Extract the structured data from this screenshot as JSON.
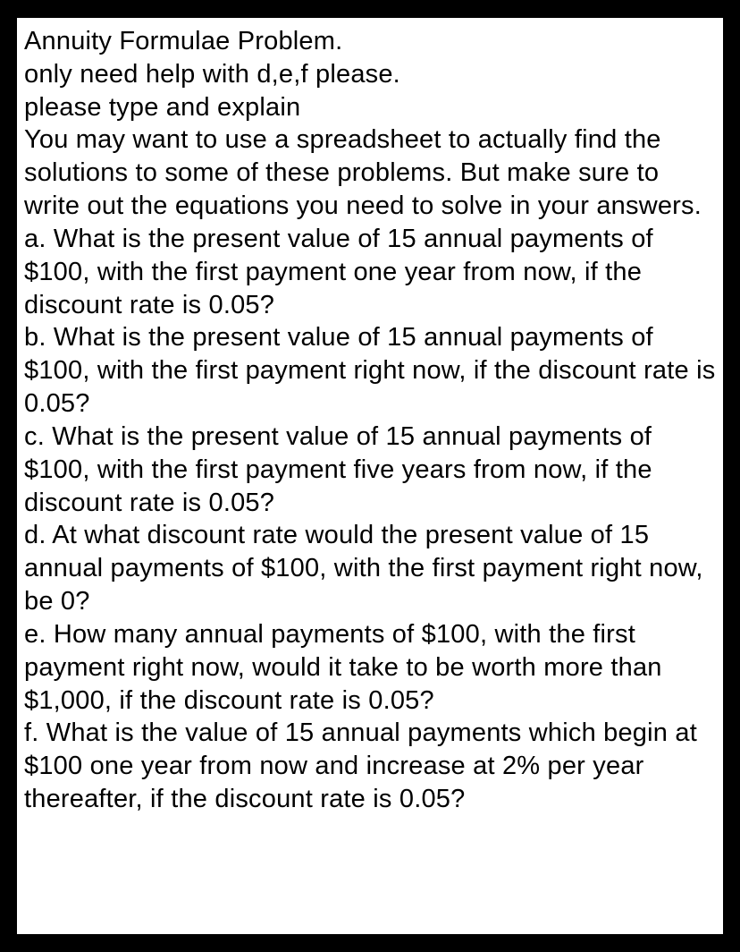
{
  "document": {
    "title": "Annuity Formulae Problem.",
    "help_line": "only need help with d,e,f please.",
    "type_line": "please type and explain",
    "intro": "You may want to use a spreadsheet to actually find the solutions to some of these problems. But make sure to write out the equations you need to solve in your answers.",
    "question_a": "a. What is the present value of 15 annual payments of $100, with the first payment one year from now, if the discount rate is 0.05?",
    "question_b": "b. What is the present value of 15 annual payments of $100, with the first payment right now, if the discount rate is 0.05?",
    "question_c": "c. What is the present value of 15 annual payments of $100, with the first payment five years from now, if the discount rate is 0.05?",
    "question_d": "d. At what discount rate would the present value of 15 annual payments of $100, with the first payment right now, be 0?",
    "question_e": "e. How many annual payments of $100, with the first payment right now, would it take to be worth more than $1,000, if the discount rate is 0.05?",
    "question_f": "f. What is the value of 15 annual payments which begin at $100 one year from now and increase at 2% per year thereafter, if the discount rate is 0.05?"
  },
  "styling": {
    "background_color": "#000000",
    "page_color": "#ffffff",
    "text_color": "#000000",
    "font_size": 29,
    "container_width": 790,
    "container_height": 1024
  }
}
